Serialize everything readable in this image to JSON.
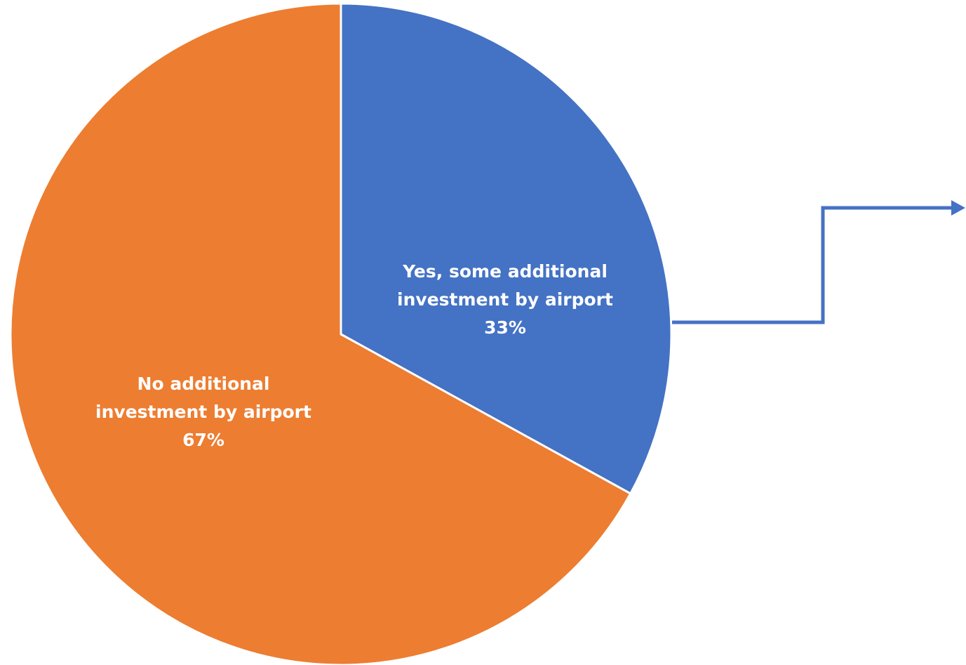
{
  "chart_data": {
    "type": "pie",
    "title": "",
    "slices": [
      {
        "label_lines": [
          "Yes, some additional",
          "investment by airport"
        ],
        "percent_label": "33%",
        "value": 33,
        "color": "#4472C4"
      },
      {
        "label_lines": [
          "No additional",
          "investment by airport"
        ],
        "percent_label": "67%",
        "value": 67,
        "color": "#ED7D31"
      }
    ],
    "start_angle": "12 o'clock",
    "direction": "clockwise",
    "slice_border_color": "#ffffff",
    "connector_arrow": {
      "from": "Yes, some additional investment by airport",
      "direction": "right",
      "color": "#4472C4"
    }
  }
}
